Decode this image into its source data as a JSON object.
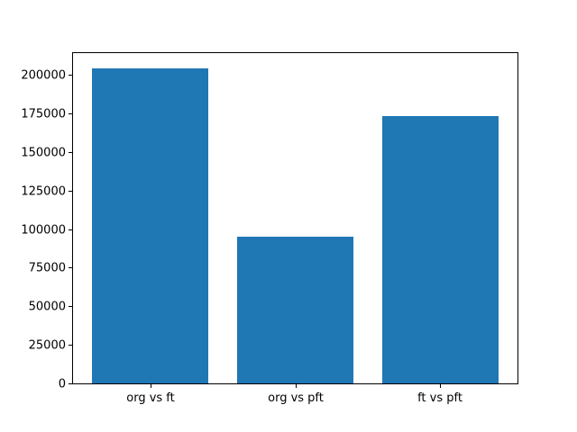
{
  "figure": {
    "background": "#ffffff"
  },
  "chart_data": {
    "type": "bar",
    "categories": [
      "org vs ft",
      "org vs pft",
      "ft vs pft"
    ],
    "values": [
      204000,
      95000,
      173000
    ],
    "title": "",
    "xlabel": "",
    "ylabel": "",
    "ylim": [
      0,
      214000
    ],
    "yticks": [
      0,
      25000,
      50000,
      75000,
      100000,
      125000,
      150000,
      175000,
      200000
    ],
    "bar_color": "#1f77b4",
    "bar_width_fraction": 0.8,
    "grid": false,
    "legend": "none",
    "axis_color": "#000000",
    "tick_label_color": "#000000"
  }
}
